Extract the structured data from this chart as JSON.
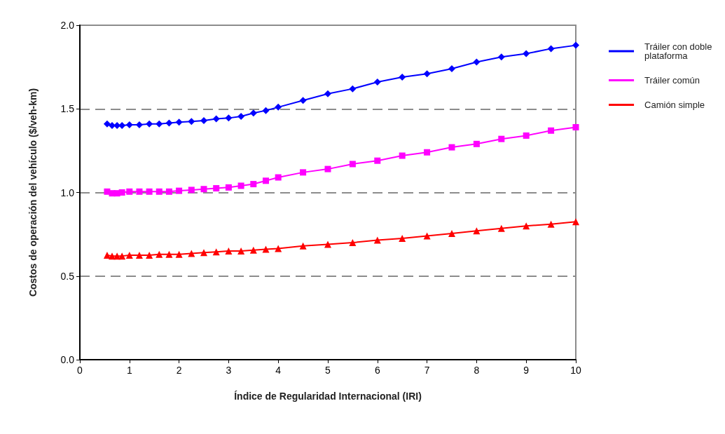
{
  "chart_data": {
    "type": "line",
    "xlabel": "Índice de Regularidad Internacional (IRI)",
    "ylabel": "Costos de operación del vehículo ($/veh-km)",
    "x": [
      0.55,
      0.65,
      0.75,
      0.85,
      1.0,
      1.2,
      1.4,
      1.6,
      1.8,
      2.0,
      2.25,
      2.5,
      2.75,
      3.0,
      3.25,
      3.5,
      3.75,
      4.0,
      4.5,
      5.0,
      5.5,
      6.0,
      6.5,
      7.0,
      7.5,
      8.0,
      8.5,
      9.0,
      9.5,
      10
    ],
    "series": [
      {
        "name": "Tráiler con doble plataforma",
        "color": "#0000ff",
        "marker": "diamond",
        "values": [
          1.41,
          1.4,
          1.4,
          1.4,
          1.405,
          1.405,
          1.41,
          1.41,
          1.415,
          1.42,
          1.425,
          1.43,
          1.44,
          1.445,
          1.455,
          1.475,
          1.49,
          1.51,
          1.55,
          1.59,
          1.62,
          1.66,
          1.69,
          1.71,
          1.74,
          1.78,
          1.81,
          1.83,
          1.86,
          1.88
        ]
      },
      {
        "name": "Tráiler común",
        "color": "#ff00ff",
        "marker": "square",
        "values": [
          1.005,
          0.995,
          0.995,
          1.0,
          1.005,
          1.005,
          1.005,
          1.005,
          1.005,
          1.01,
          1.015,
          1.02,
          1.025,
          1.03,
          1.04,
          1.05,
          1.07,
          1.09,
          1.12,
          1.14,
          1.17,
          1.19,
          1.22,
          1.24,
          1.27,
          1.29,
          1.32,
          1.34,
          1.37,
          1.39
        ]
      },
      {
        "name": "Camión simple",
        "color": "#ff0000",
        "marker": "triangle",
        "values": [
          0.625,
          0.62,
          0.62,
          0.62,
          0.625,
          0.625,
          0.625,
          0.63,
          0.63,
          0.63,
          0.635,
          0.64,
          0.645,
          0.65,
          0.65,
          0.655,
          0.66,
          0.665,
          0.68,
          0.69,
          0.7,
          0.715,
          0.725,
          0.74,
          0.755,
          0.77,
          0.785,
          0.8,
          0.81,
          0.825
        ]
      }
    ],
    "xlim": [
      0,
      10
    ],
    "xticks": [
      0,
      1,
      2,
      3,
      4,
      5,
      6,
      7,
      8,
      9,
      10
    ],
    "ylim": [
      0,
      2
    ],
    "yticks": [
      {
        "value": 0,
        "label": "0.0"
      },
      {
        "value": 0.5,
        "label": "0.5"
      },
      {
        "value": 1,
        "label": "1.0"
      },
      {
        "value": 1.5,
        "label": "1.5"
      },
      {
        "value": 2,
        "label": "2.0"
      }
    ],
    "grid": "y",
    "line_style": "solid",
    "legend": "right"
  }
}
